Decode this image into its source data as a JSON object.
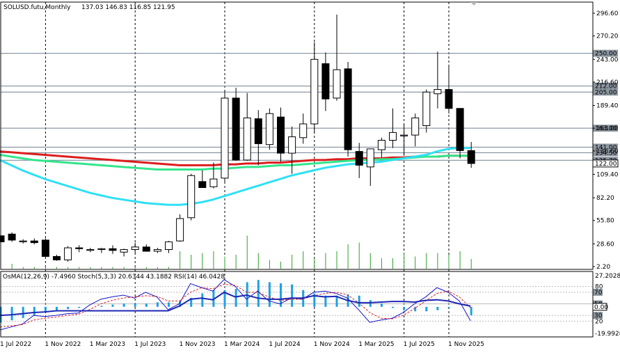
{
  "chart_data": {
    "type": "candlestick",
    "title": "SOLUSD.futu,Monthly",
    "ohlc_label": "137.03 146.83 116.85 121.95",
    "x_tick_labels": [
      "1 Jul 2022",
      "1 Nov 2022",
      "1 Mar 2023",
      "1 Jul 2023",
      "1 Nov 2023",
      "1 Mar 2024",
      "1 Jul 2024",
      "1 Nov 2024",
      "1 Mar 2025",
      "1 Jul 2025",
      "1 Nov 2025"
    ],
    "y_tick_labels": [
      "296.60",
      "270.20",
      "243.00",
      "216.60",
      "189.40",
      "163.00",
      "136.60",
      "109.40",
      "82.20",
      "55.80",
      "28.60",
      "2.20"
    ],
    "price_range": [
      2.2,
      296.6
    ],
    "level_labels": [
      "250.00",
      "212.00",
      "205.00",
      "163.00",
      "141.00",
      "134.50",
      "125.70"
    ],
    "levels": [
      250.0,
      212.0,
      205.0,
      163.0,
      141.0,
      134.5,
      125.7
    ],
    "current_price_label": "122.00",
    "candles": [
      {
        "o": 38,
        "h": 45,
        "l": 28,
        "c": 31
      },
      {
        "o": 40,
        "h": 42,
        "l": 31,
        "c": 33
      },
      {
        "o": 31,
        "h": 34,
        "l": 29,
        "c": 32
      },
      {
        "o": 32,
        "h": 35,
        "l": 28,
        "c": 30
      },
      {
        "o": 33,
        "h": 35,
        "l": 16,
        "c": 14
      },
      {
        "o": 14,
        "h": 16,
        "l": 9,
        "c": 10
      },
      {
        "o": 10,
        "h": 26,
        "l": 8,
        "c": 24
      },
      {
        "o": 24,
        "h": 27,
        "l": 19,
        "c": 23
      },
      {
        "o": 21,
        "h": 24,
        "l": 19,
        "c": 22
      },
      {
        "o": 22,
        "h": 24,
        "l": 18,
        "c": 23
      },
      {
        "o": 23,
        "h": 27,
        "l": 17,
        "c": 21
      },
      {
        "o": 19,
        "h": 23,
        "l": 14,
        "c": 22
      },
      {
        "o": 22,
        "h": 30,
        "l": 18,
        "c": 25
      },
      {
        "o": 25,
        "h": 28,
        "l": 20,
        "c": 20
      },
      {
        "o": 20,
        "h": 24,
        "l": 18,
        "c": 22
      },
      {
        "o": 22,
        "h": 32,
        "l": 18,
        "c": 31
      },
      {
        "o": 32,
        "h": 63,
        "l": 31,
        "c": 58
      },
      {
        "o": 59,
        "h": 110,
        "l": 56,
        "c": 108
      },
      {
        "o": 101,
        "h": 114,
        "l": 96,
        "c": 94
      },
      {
        "o": 95,
        "h": 123,
        "l": 93,
        "c": 104
      },
      {
        "o": 105,
        "h": 206,
        "l": 100,
        "c": 198
      },
      {
        "o": 198,
        "h": 210,
        "l": 125,
        "c": 126
      },
      {
        "o": 126,
        "h": 204,
        "l": 125,
        "c": 175
      },
      {
        "o": 174,
        "h": 184,
        "l": 120,
        "c": 145
      },
      {
        "o": 144,
        "h": 186,
        "l": 138,
        "c": 180
      },
      {
        "o": 176,
        "h": 187,
        "l": 124,
        "c": 134
      },
      {
        "o": 134,
        "h": 165,
        "l": 110,
        "c": 153
      },
      {
        "o": 152,
        "h": 180,
        "l": 145,
        "c": 168
      },
      {
        "o": 168,
        "h": 263,
        "l": 158,
        "c": 243
      },
      {
        "o": 238,
        "h": 251,
        "l": 183,
        "c": 197
      },
      {
        "o": 198,
        "h": 295,
        "l": 195,
        "c": 231
      },
      {
        "o": 232,
        "h": 240,
        "l": 130,
        "c": 138
      },
      {
        "o": 136,
        "h": 146,
        "l": 105,
        "c": 120
      },
      {
        "o": 118,
        "h": 137,
        "l": 96,
        "c": 139
      },
      {
        "o": 138,
        "h": 152,
        "l": 129,
        "c": 149
      },
      {
        "o": 149,
        "h": 186,
        "l": 140,
        "c": 158
      },
      {
        "o": 154,
        "h": 167,
        "l": 131,
        "c": 155
      },
      {
        "o": 155,
        "h": 180,
        "l": 142,
        "c": 175
      },
      {
        "o": 166,
        "h": 208,
        "l": 158,
        "c": 205
      },
      {
        "o": 203,
        "h": 252,
        "l": 186,
        "c": 208
      },
      {
        "o": 208,
        "h": 237,
        "l": 180,
        "c": 186
      },
      {
        "o": 186,
        "h": 186,
        "l": 128,
        "c": 137
      },
      {
        "o": 137,
        "h": 147,
        "l": 117,
        "c": 122
      }
    ],
    "volume": [
      0.24,
      0.14,
      0.05,
      0.05,
      0.05,
      0.05,
      0.05,
      0.05,
      0.05,
      0.05,
      0.05,
      0.05,
      0.05,
      0.05,
      0.05,
      0.05,
      0.5,
      0.4,
      0.45,
      0.5,
      0.35,
      0.4,
      0.95,
      0.45,
      0.25,
      0.2,
      0.4,
      0.5,
      0.3,
      0.45,
      0.5,
      0.7,
      0.75,
      0.45,
      0.3,
      0.3,
      0.45,
      0.35,
      0.45,
      0.45,
      0.4,
      0.5,
      0.28
    ],
    "ma_series": [
      {
        "color": "#dc1e1e",
        "values": [
          136,
          135,
          134,
          133,
          132,
          131,
          130,
          129,
          128,
          127,
          126,
          125,
          124,
          123,
          122,
          121,
          120,
          120,
          120,
          120,
          121,
          121,
          122,
          122,
          123,
          123,
          124,
          125,
          126,
          126,
          127,
          127,
          128,
          128,
          128,
          129,
          129,
          130,
          130,
          130,
          131,
          131,
          131
        ]
      },
      {
        "color": "#32e68c",
        "values": [
          132,
          130,
          128,
          126,
          125,
          124,
          123,
          122,
          121,
          120,
          119,
          118,
          117,
          116,
          115,
          115,
          115,
          115,
          115,
          116,
          116,
          117,
          118,
          118,
          119,
          120,
          120,
          121,
          122,
          123,
          124,
          125,
          126,
          126,
          127,
          127,
          128,
          129,
          130,
          130,
          131,
          131,
          131
        ]
      },
      {
        "color": "#2fe0f5",
        "values": [
          126,
          120,
          114,
          109,
          104,
          100,
          96,
          92,
          88,
          85,
          82,
          80,
          78,
          76,
          75,
          74,
          74,
          75,
          77,
          80,
          84,
          88,
          92,
          96,
          100,
          104,
          108,
          111,
          114,
          117,
          119,
          121,
          122,
          123,
          124,
          126,
          128,
          130,
          132,
          136,
          139,
          140,
          140
        ]
      }
    ],
    "indicator_label": "OsMA(12,26,9) -7.4960  Stoch(5,3,3) 20.6344 43.1882  RSI(14) 46.0428",
    "osma_range_labels": [
      "27.2028",
      "-19.9928"
    ],
    "osma_range": [
      -19.9928,
      27.2028
    ],
    "osma": [
      -14,
      -12,
      -10,
      -8,
      -5,
      -3,
      -2,
      -1,
      0,
      1,
      2,
      3,
      3,
      3,
      4,
      4,
      5,
      8,
      12,
      15,
      15,
      16,
      22,
      24,
      22,
      21,
      20,
      15,
      12,
      10,
      10,
      11,
      10,
      6,
      3,
      -1,
      -3,
      -4,
      -4,
      -3,
      -1,
      0,
      -7.5
    ],
    "stoch_range": [
      0,
      100
    ],
    "stoch_level_labels": [
      "80",
      "70",
      "50",
      "30",
      "20"
    ],
    "stoch_levels": [
      80,
      70,
      50,
      30,
      20
    ],
    "stoch_main": [
      5,
      10,
      15,
      30,
      28,
      30,
      33,
      34,
      48,
      58,
      62,
      65,
      60,
      70,
      62,
      40,
      50,
      85,
      78,
      72,
      92,
      80,
      58,
      72,
      55,
      50,
      60,
      58,
      70,
      72,
      68,
      60,
      40,
      18,
      22,
      25,
      35,
      50,
      62,
      78,
      70,
      55,
      20.6
    ],
    "stoch_signal": [
      10,
      12,
      14,
      22,
      25,
      27,
      30,
      32,
      40,
      50,
      56,
      60,
      62,
      64,
      63,
      55,
      55,
      70,
      78,
      76,
      84,
      82,
      70,
      70,
      62,
      56,
      58,
      58,
      64,
      68,
      70,
      66,
      52,
      35,
      25,
      24,
      30,
      42,
      55,
      68,
      72,
      62,
      43.2
    ],
    "rsi": [
      30,
      31,
      33,
      35,
      36,
      38,
      38,
      38,
      38,
      38,
      38,
      38,
      38,
      38,
      38,
      38,
      46,
      58,
      60,
      57,
      70,
      62,
      65,
      60,
      58,
      58,
      60,
      60,
      64,
      62,
      63,
      56,
      52,
      52,
      53,
      54,
      54,
      53,
      56,
      57,
      55,
      50,
      46.04
    ],
    "rsi_labels": [
      "0.00"
    ]
  }
}
